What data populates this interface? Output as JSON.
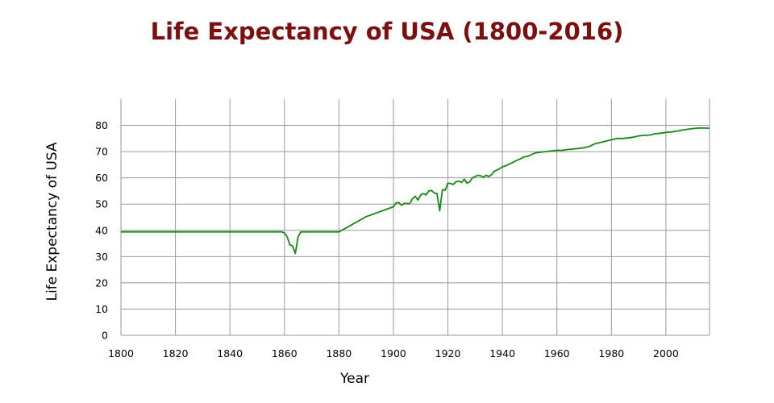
{
  "chart_data": {
    "type": "line",
    "title": "Life Expectancy of USA (1800-2016)",
    "xlabel": "Year",
    "ylabel": "Life Expectancy of USA",
    "xlim": [
      1800,
      2016
    ],
    "ylim": [
      0,
      90
    ],
    "x_ticks": [
      1800,
      1820,
      1840,
      1860,
      1880,
      1900,
      1920,
      1940,
      1960,
      1980,
      2000
    ],
    "y_ticks": [
      0,
      10,
      20,
      30,
      40,
      50,
      60,
      70,
      80
    ],
    "grid": true,
    "line_color": "#148a14",
    "title_color": "#7f0f0f",
    "series": [
      {
        "name": "Life Expectancy of USA",
        "x": [
          1800,
          1859,
          1860,
          1861,
          1862,
          1863,
          1864,
          1865,
          1866,
          1867,
          1880,
          1890,
          1900,
          1901,
          1902,
          1903,
          1904,
          1905,
          1906,
          1907,
          1908,
          1909,
          1910,
          1911,
          1912,
          1913,
          1914,
          1915,
          1916,
          1917,
          1918,
          1919,
          1920,
          1921,
          1922,
          1923,
          1924,
          1925,
          1926,
          1927,
          1928,
          1929,
          1930,
          1931,
          1932,
          1933,
          1934,
          1935,
          1936,
          1937,
          1938,
          1939,
          1940,
          1941,
          1942,
          1943,
          1944,
          1945,
          1946,
          1947,
          1948,
          1949,
          1950,
          1952,
          1954,
          1956,
          1958,
          1960,
          1962,
          1964,
          1966,
          1968,
          1970,
          1972,
          1974,
          1976,
          1978,
          1980,
          1982,
          1984,
          1986,
          1988,
          1990,
          1992,
          1994,
          1996,
          1998,
          2000,
          2002,
          2004,
          2006,
          2008,
          2010,
          2012,
          2014,
          2016
        ],
        "y": [
          39.4,
          39.4,
          39.0,
          37.5,
          34.5,
          34.0,
          31.2,
          37.5,
          39.4,
          39.4,
          39.4,
          45.2,
          49.0,
          50.5,
          50.6,
          49.5,
          50.3,
          50.2,
          50.2,
          52.0,
          53.0,
          51.5,
          53.5,
          54.0,
          53.5,
          55.0,
          55.2,
          54.2,
          54.0,
          47.5,
          55.5,
          55.3,
          58.0,
          57.8,
          57.5,
          58.5,
          58.8,
          58.2,
          59.5,
          58.0,
          58.5,
          60.0,
          60.5,
          61.0,
          60.8,
          60.2,
          61.0,
          60.5,
          61.2,
          62.5,
          63.0,
          63.5,
          64.2,
          64.5,
          65.0,
          65.5,
          66.0,
          66.5,
          67.0,
          67.5,
          68.0,
          68.2,
          68.5,
          69.5,
          69.8,
          70.0,
          70.3,
          70.5,
          70.5,
          70.8,
          71.0,
          71.2,
          71.5,
          72.0,
          73.0,
          73.5,
          74.0,
          74.5,
          75.0,
          75.0,
          75.2,
          75.5,
          76.0,
          76.2,
          76.3,
          76.8,
          77.0,
          77.3,
          77.5,
          77.8,
          78.2,
          78.5,
          78.8,
          79.0,
          79.0,
          78.9
        ]
      }
    ]
  }
}
